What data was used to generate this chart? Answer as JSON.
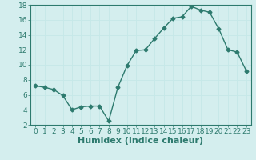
{
  "x": [
    0,
    1,
    2,
    3,
    4,
    5,
    6,
    7,
    8,
    9,
    10,
    11,
    12,
    13,
    14,
    15,
    16,
    17,
    18,
    19,
    20,
    21,
    22,
    23
  ],
  "y": [
    7.2,
    7.0,
    6.7,
    5.9,
    4.0,
    4.4,
    4.5,
    4.5,
    2.5,
    7.0,
    9.9,
    11.9,
    12.0,
    13.5,
    14.9,
    16.2,
    16.4,
    17.8,
    17.3,
    17.0,
    14.8,
    12.0,
    11.7,
    9.2
  ],
  "ylim": [
    2,
    18
  ],
  "xlim": [
    -0.5,
    23.5
  ],
  "yticks": [
    2,
    4,
    6,
    8,
    10,
    12,
    14,
    16,
    18
  ],
  "xticks": [
    0,
    1,
    2,
    3,
    4,
    5,
    6,
    7,
    8,
    9,
    10,
    11,
    12,
    13,
    14,
    15,
    16,
    17,
    18,
    19,
    20,
    21,
    22,
    23
  ],
  "xlabel": "Humidex (Indice chaleur)",
  "line_color": "#2d7a6e",
  "marker": "D",
  "marker_size": 2.5,
  "bg_color": "#d4eeee",
  "grid_color": "#c5e8e8",
  "axes_color": "#2d7a6e",
  "tick_label_fontsize": 6.5,
  "xlabel_fontsize": 8,
  "line_width": 1.0
}
